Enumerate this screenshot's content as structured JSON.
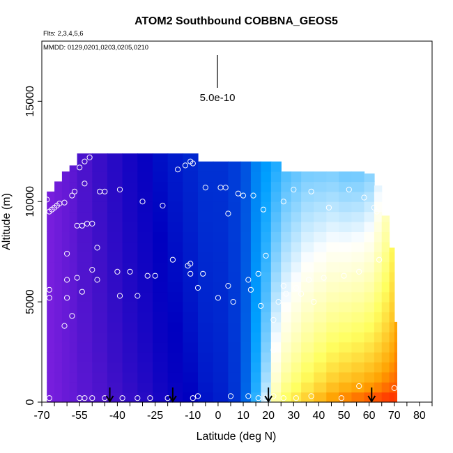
{
  "chart_data": {
    "type": "heatmap",
    "title": "ATOM2 Southbound COBBNA_GEOS5",
    "subtitle_flights": "Flts: 2,3,4,5,6",
    "subtitle_dates": "MMDD: 0129,0201,0203,0205,0210",
    "xlabel": "Latitude (deg N)",
    "ylabel": "Altitude (m)",
    "xlim": [
      -70,
      85
    ],
    "ylim": [
      0,
      18000
    ],
    "x_ticks": [
      -70,
      -55,
      -40,
      -25,
      -10,
      0,
      10,
      20,
      30,
      40,
      50,
      60,
      70,
      80
    ],
    "x_tick_labels": [
      "-70",
      "-55",
      "-40",
      "-25",
      "-10",
      "0",
      "10",
      "20",
      "30",
      "40",
      "50",
      "60",
      "70",
      "80"
    ],
    "y_ticks": [
      0,
      5000,
      10000,
      15000
    ],
    "y_tick_labels": [
      "0",
      "5000",
      "10000",
      "15000"
    ],
    "scale_label": "5.0e-10",
    "colormap": [
      "#8020e0",
      "#4010c8",
      "#0000c0",
      "#00a0ff",
      "#ffffff",
      "#ffff60",
      "#ffa000",
      "#ff0000"
    ],
    "point_color": "#ffffff",
    "arrow_color": "#000000",
    "profile_arrows_lat": [
      -43,
      -18,
      20,
      61
    ],
    "columns": [
      {
        "x0": -68,
        "x1": -65,
        "top": 10500,
        "bottom_val": 0.02,
        "top_val": 0.02
      },
      {
        "x0": -65,
        "x1": -62,
        "top": 11000,
        "bottom_val": 0.03,
        "top_val": 0.04
      },
      {
        "x0": -62,
        "x1": -59,
        "top": 11500,
        "bottom_val": 0.05,
        "top_val": 0.06
      },
      {
        "x0": -59,
        "x1": -56,
        "top": 11800,
        "bottom_val": 0.06,
        "top_val": 0.08
      },
      {
        "x0": -56,
        "x1": -50,
        "top": 12400,
        "bottom_val": 0.08,
        "top_val": 0.12
      },
      {
        "x0": -50,
        "x1": -44,
        "top": 12400,
        "bottom_val": 0.1,
        "top_val": 0.16
      },
      {
        "x0": -44,
        "x1": -38,
        "top": 12400,
        "bottom_val": 0.13,
        "top_val": 0.2
      },
      {
        "x0": -38,
        "x1": -32,
        "top": 12400,
        "bottom_val": 0.16,
        "top_val": 0.24
      },
      {
        "x0": -32,
        "x1": -26,
        "top": 12400,
        "bottom_val": 0.19,
        "top_val": 0.27
      },
      {
        "x0": -26,
        "x1": -20,
        "top": 12400,
        "bottom_val": 0.23,
        "top_val": 0.3
      },
      {
        "x0": -20,
        "x1": -14,
        "top": 12400,
        "bottom_val": 0.26,
        "top_val": 0.31
      },
      {
        "x0": -14,
        "x1": -8,
        "top": 12400,
        "bottom_val": 0.28,
        "top_val": 0.32
      },
      {
        "x0": -8,
        "x1": -2,
        "top": 12000,
        "bottom_val": 0.3,
        "top_val": 0.33
      },
      {
        "x0": -2,
        "x1": 4,
        "top": 12000,
        "bottom_val": 0.31,
        "top_val": 0.33
      },
      {
        "x0": 4,
        "x1": 9,
        "top": 12000,
        "bottom_val": 0.33,
        "top_val": 0.34
      },
      {
        "x0": 9,
        "x1": 13,
        "top": 12000,
        "bottom_val": 0.38,
        "top_val": 0.36
      },
      {
        "x0": 13,
        "x1": 17,
        "top": 12000,
        "bottom_val": 0.46,
        "top_val": 0.4
      },
      {
        "x0": 17,
        "x1": 21,
        "top": 12000,
        "bottom_val": 0.56,
        "top_val": 0.42
      },
      {
        "x0": 21,
        "x1": 25,
        "top": 12000,
        "bottom_val": 0.68,
        "top_val": 0.44
      },
      {
        "x0": 25,
        "x1": 29,
        "top": 11500,
        "bottom_val": 0.74,
        "top_val": 0.46
      },
      {
        "x0": 29,
        "x1": 33,
        "top": 11500,
        "bottom_val": 0.78,
        "top_val": 0.47
      },
      {
        "x0": 33,
        "x1": 38,
        "top": 11500,
        "bottom_val": 0.82,
        "top_val": 0.48
      },
      {
        "x0": 38,
        "x1": 43,
        "top": 11500,
        "bottom_val": 0.86,
        "top_val": 0.48
      },
      {
        "x0": 43,
        "x1": 48,
        "top": 11500,
        "bottom_val": 0.9,
        "top_val": 0.48
      },
      {
        "x0": 48,
        "x1": 53,
        "top": 11500,
        "bottom_val": 0.93,
        "top_val": 0.47
      },
      {
        "x0": 53,
        "x1": 58,
        "top": 11500,
        "bottom_val": 0.95,
        "top_val": 0.47
      },
      {
        "x0": 58,
        "x1": 62,
        "top": 11400,
        "bottom_val": 0.97,
        "top_val": 0.48
      },
      {
        "x0": 62,
        "x1": 65,
        "top": 10800,
        "bottom_val": 0.98,
        "top_val": 0.52
      },
      {
        "x0": 65,
        "x1": 68,
        "top": 9300,
        "bottom_val": 0.99,
        "top_val": 0.57
      },
      {
        "x0": 68,
        "x1": 70,
        "top": 7700,
        "bottom_val": 0.99,
        "top_val": 0.64
      },
      {
        "x0": 70,
        "x1": 71,
        "top": 4000,
        "bottom_val": 0.97,
        "top_val": 0.74
      }
    ],
    "observations": [
      {
        "x": -68,
        "y": 10100
      },
      {
        "x": -67,
        "y": 9500
      },
      {
        "x": -66,
        "y": 9600
      },
      {
        "x": -65,
        "y": 9700
      },
      {
        "x": -64,
        "y": 9800
      },
      {
        "x": -63,
        "y": 9900
      },
      {
        "x": -61,
        "y": 9950
      },
      {
        "x": -58,
        "y": 10300
      },
      {
        "x": -57,
        "y": 10500
      },
      {
        "x": -53,
        "y": 12000
      },
      {
        "x": -51,
        "y": 12200
      },
      {
        "x": -55,
        "y": 11700
      },
      {
        "x": -53,
        "y": 10900
      },
      {
        "x": -47,
        "y": 10500
      },
      {
        "x": -45,
        "y": 10500
      },
      {
        "x": -39,
        "y": 10600
      },
      {
        "x": -30,
        "y": 10000
      },
      {
        "x": -22,
        "y": 9800
      },
      {
        "x": -16,
        "y": 11600
      },
      {
        "x": -13,
        "y": 11800
      },
      {
        "x": -11,
        "y": 12000
      },
      {
        "x": -10,
        "y": 11900
      },
      {
        "x": -5,
        "y": 10700
      },
      {
        "x": 1,
        "y": 10700
      },
      {
        "x": 3,
        "y": 10700
      },
      {
        "x": 4,
        "y": 9400
      },
      {
        "x": 8,
        "y": 10400
      },
      {
        "x": 10,
        "y": 10300
      },
      {
        "x": 14,
        "y": 10300
      },
      {
        "x": 18,
        "y": 9600
      },
      {
        "x": 26,
        "y": 10000
      },
      {
        "x": 30,
        "y": 10600
      },
      {
        "x": 37,
        "y": 10500
      },
      {
        "x": 44,
        "y": 9700
      },
      {
        "x": 52,
        "y": 10600
      },
      {
        "x": 58,
        "y": 10200
      },
      {
        "x": 62,
        "y": 9700
      },
      {
        "x": 63,
        "y": 9500
      },
      {
        "x": 66,
        "y": 11300
      },
      {
        "x": 69,
        "y": 11200
      },
      {
        "x": -56,
        "y": 8800
      },
      {
        "x": -54,
        "y": 8800
      },
      {
        "x": -52,
        "y": 8900
      },
      {
        "x": -50,
        "y": 8900
      },
      {
        "x": -48,
        "y": 7700
      },
      {
        "x": -60,
        "y": 7400
      },
      {
        "x": -67,
        "y": 5600
      },
      {
        "x": -67,
        "y": 5200
      },
      {
        "x": -60,
        "y": 6100
      },
      {
        "x": -56,
        "y": 6200
      },
      {
        "x": -50,
        "y": 6600
      },
      {
        "x": -48,
        "y": 6100
      },
      {
        "x": -40,
        "y": 6500
      },
      {
        "x": -35,
        "y": 6500
      },
      {
        "x": -28,
        "y": 6300
      },
      {
        "x": -25,
        "y": 6300
      },
      {
        "x": -18,
        "y": 7100
      },
      {
        "x": -12,
        "y": 6800
      },
      {
        "x": -11,
        "y": 6900
      },
      {
        "x": -11,
        "y": 6400
      },
      {
        "x": -6,
        "y": 6400
      },
      {
        "x": -8,
        "y": 5700
      },
      {
        "x": -54,
        "y": 5500
      },
      {
        "x": -39,
        "y": 5300
      },
      {
        "x": -32,
        "y": 5300
      },
      {
        "x": -60,
        "y": 5200
      },
      {
        "x": -58,
        "y": 4300
      },
      {
        "x": -61,
        "y": 3800
      },
      {
        "x": 0,
        "y": 5200
      },
      {
        "x": 4,
        "y": 5800
      },
      {
        "x": 6,
        "y": 5000
      },
      {
        "x": 12,
        "y": 6100
      },
      {
        "x": 13,
        "y": 5600
      },
      {
        "x": 16,
        "y": 6400
      },
      {
        "x": 17,
        "y": 4800
      },
      {
        "x": 19,
        "y": 7300
      },
      {
        "x": 22,
        "y": 4100
      },
      {
        "x": 24,
        "y": 5000
      },
      {
        "x": 26,
        "y": 5800
      },
      {
        "x": 27,
        "y": 5400
      },
      {
        "x": 31,
        "y": 5700
      },
      {
        "x": 33,
        "y": 5400
      },
      {
        "x": 36,
        "y": 6100
      },
      {
        "x": 38,
        "y": 5000
      },
      {
        "x": 42,
        "y": 6200
      },
      {
        "x": 50,
        "y": 6300
      },
      {
        "x": 56,
        "y": 6500
      },
      {
        "x": 64,
        "y": 7100
      },
      {
        "x": 22,
        "y": 2600
      },
      {
        "x": 56,
        "y": 800
      },
      {
        "x": 70,
        "y": 700
      },
      {
        "x": -67,
        "y": 200
      },
      {
        "x": -55,
        "y": 200
      },
      {
        "x": -53,
        "y": 200
      },
      {
        "x": -50,
        "y": 200
      },
      {
        "x": -45,
        "y": 200
      },
      {
        "x": -38,
        "y": 200
      },
      {
        "x": -32,
        "y": 200
      },
      {
        "x": -27,
        "y": 200
      },
      {
        "x": -20,
        "y": 200
      },
      {
        "x": -10,
        "y": 200
      },
      {
        "x": -8,
        "y": 300
      },
      {
        "x": 5,
        "y": 300
      },
      {
        "x": 12,
        "y": 300
      },
      {
        "x": 16,
        "y": 200
      },
      {
        "x": 19,
        "y": 200
      },
      {
        "x": 22,
        "y": 300
      },
      {
        "x": 26,
        "y": 200
      },
      {
        "x": 31,
        "y": 200
      },
      {
        "x": 37,
        "y": 300
      },
      {
        "x": 49,
        "y": 200
      }
    ]
  }
}
